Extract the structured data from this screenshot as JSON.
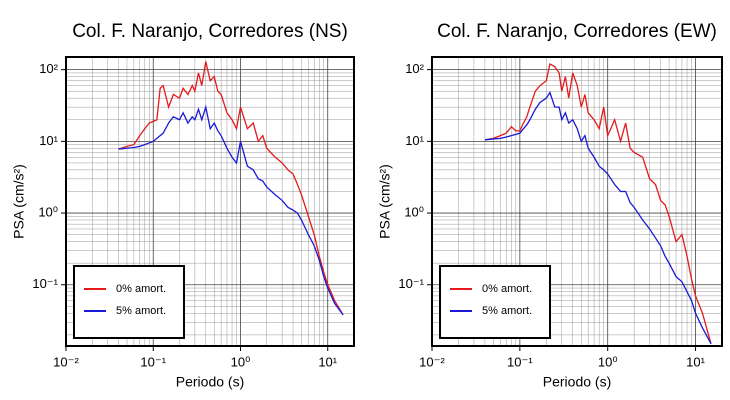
{
  "chart_data": [
    {
      "type": "line",
      "title": "Col. F. Naranjo, Corredores (NS)",
      "x_label": "Periodo (s)",
      "y_label": "PSA (cm/s²)",
      "x": [
        0.04,
        0.05,
        0.06,
        0.07,
        0.08,
        0.09,
        0.1,
        0.11,
        0.12,
        0.13,
        0.15,
        0.17,
        0.2,
        0.22,
        0.25,
        0.28,
        0.3,
        0.33,
        0.36,
        0.4,
        0.45,
        0.5,
        0.55,
        0.6,
        0.7,
        0.8,
        0.9,
        1.0,
        1.2,
        1.4,
        1.6,
        1.8,
        2,
        2.5,
        3,
        3.5,
        4,
        4.5,
        5,
        6,
        7,
        8,
        9,
        10,
        12,
        15
      ],
      "series": [
        {
          "name": "0% amort.",
          "color": "#e41a1c",
          "values": [
            7.8,
            8.5,
            9,
            12,
            15,
            18,
            19,
            20,
            55,
            60,
            30,
            45,
            40,
            55,
            45,
            60,
            50,
            90,
            60,
            130,
            70,
            80,
            50,
            45,
            25,
            20,
            15,
            30,
            15,
            18,
            10,
            12,
            8,
            6,
            5,
            4,
            3.5,
            2.5,
            1.8,
            0.9,
            0.5,
            0.25,
            0.15,
            0.1,
            0.06,
            0.038
          ]
        },
        {
          "name": "5% amort.",
          "color": "#1a1ad6",
          "values": [
            7.8,
            8,
            8.2,
            8.5,
            9,
            9.5,
            10,
            11,
            12,
            13,
            18,
            22,
            20,
            25,
            18,
            22,
            20,
            28,
            20,
            30,
            15,
            18,
            14,
            12,
            8,
            6,
            5,
            10,
            4.5,
            4,
            3,
            2.8,
            2.3,
            1.8,
            1.5,
            1.2,
            1.1,
            1.0,
            0.8,
            0.5,
            0.35,
            0.22,
            0.13,
            0.09,
            0.055,
            0.038
          ]
        }
      ],
      "xlim": [
        0.01,
        20
      ],
      "ylim": [
        0.014,
        150
      ],
      "log_x": true,
      "log_y": true,
      "grid": true,
      "minor_grid": true,
      "legend": "lower left",
      "xticks": [
        {
          "value": 0.01,
          "label": "10⁻²"
        },
        {
          "value": 0.1,
          "label": "10⁻¹"
        },
        {
          "value": 1,
          "label": "10⁰"
        },
        {
          "value": 10,
          "label": "10¹"
        }
      ],
      "yticks": [
        {
          "value": 0.1,
          "label": "10⁻¹"
        },
        {
          "value": 1,
          "label": "10⁰"
        },
        {
          "value": 10,
          "label": "10¹"
        },
        {
          "value": 100,
          "label": "10²"
        }
      ]
    },
    {
      "type": "line",
      "title": "Col. F. Naranjo, Corredores (EW)",
      "x_label": "Periodo (s)",
      "y_label": "PSA (cm/s²)",
      "x": [
        0.04,
        0.05,
        0.06,
        0.07,
        0.08,
        0.09,
        0.1,
        0.11,
        0.12,
        0.13,
        0.15,
        0.17,
        0.2,
        0.22,
        0.25,
        0.28,
        0.3,
        0.33,
        0.36,
        0.4,
        0.45,
        0.5,
        0.55,
        0.6,
        0.7,
        0.8,
        0.9,
        1.0,
        1.2,
        1.4,
        1.6,
        1.8,
        2,
        2.5,
        3,
        3.5,
        4,
        4.5,
        5,
        6,
        7,
        8,
        9,
        10,
        12,
        15
      ],
      "series": [
        {
          "name": "0% amort.",
          "color": "#e41a1c",
          "values": [
            10.5,
            11,
            12,
            13,
            16,
            14,
            14,
            18,
            22,
            30,
            50,
            60,
            70,
            120,
            110,
            90,
            50,
            80,
            40,
            90,
            60,
            30,
            45,
            25,
            20,
            15,
            30,
            12,
            20,
            10,
            18,
            8,
            7,
            6,
            3,
            2.5,
            1.5,
            1.3,
            0.9,
            0.4,
            0.5,
            0.25,
            0.12,
            0.07,
            0.04,
            0.015
          ]
        },
        {
          "name": "5% amort.",
          "color": "#1a1ad6",
          "values": [
            10.5,
            10.8,
            11,
            11.5,
            12,
            12.5,
            13,
            15,
            17,
            20,
            28,
            35,
            40,
            48,
            30,
            30,
            20,
            25,
            18,
            20,
            15,
            10,
            12,
            8,
            6,
            4.5,
            4,
            3.5,
            2.5,
            2,
            2,
            1.4,
            1.2,
            0.8,
            0.6,
            0.45,
            0.35,
            0.25,
            0.2,
            0.13,
            0.11,
            0.08,
            0.06,
            0.04,
            0.025,
            0.015
          ]
        }
      ],
      "xlim": [
        0.01,
        20
      ],
      "ylim": [
        0.014,
        150
      ],
      "log_x": true,
      "log_y": true,
      "grid": true,
      "minor_grid": true,
      "legend": "lower left",
      "xticks": [
        {
          "value": 0.01,
          "label": "10⁻²"
        },
        {
          "value": 0.1,
          "label": "10⁻¹"
        },
        {
          "value": 1,
          "label": "10⁰"
        },
        {
          "value": 10,
          "label": "10¹"
        }
      ],
      "yticks": [
        {
          "value": 0.1,
          "label": "10⁻¹"
        },
        {
          "value": 1,
          "label": "10⁰"
        },
        {
          "value": 10,
          "label": "10¹"
        },
        {
          "value": 100,
          "label": "10²"
        }
      ]
    }
  ]
}
